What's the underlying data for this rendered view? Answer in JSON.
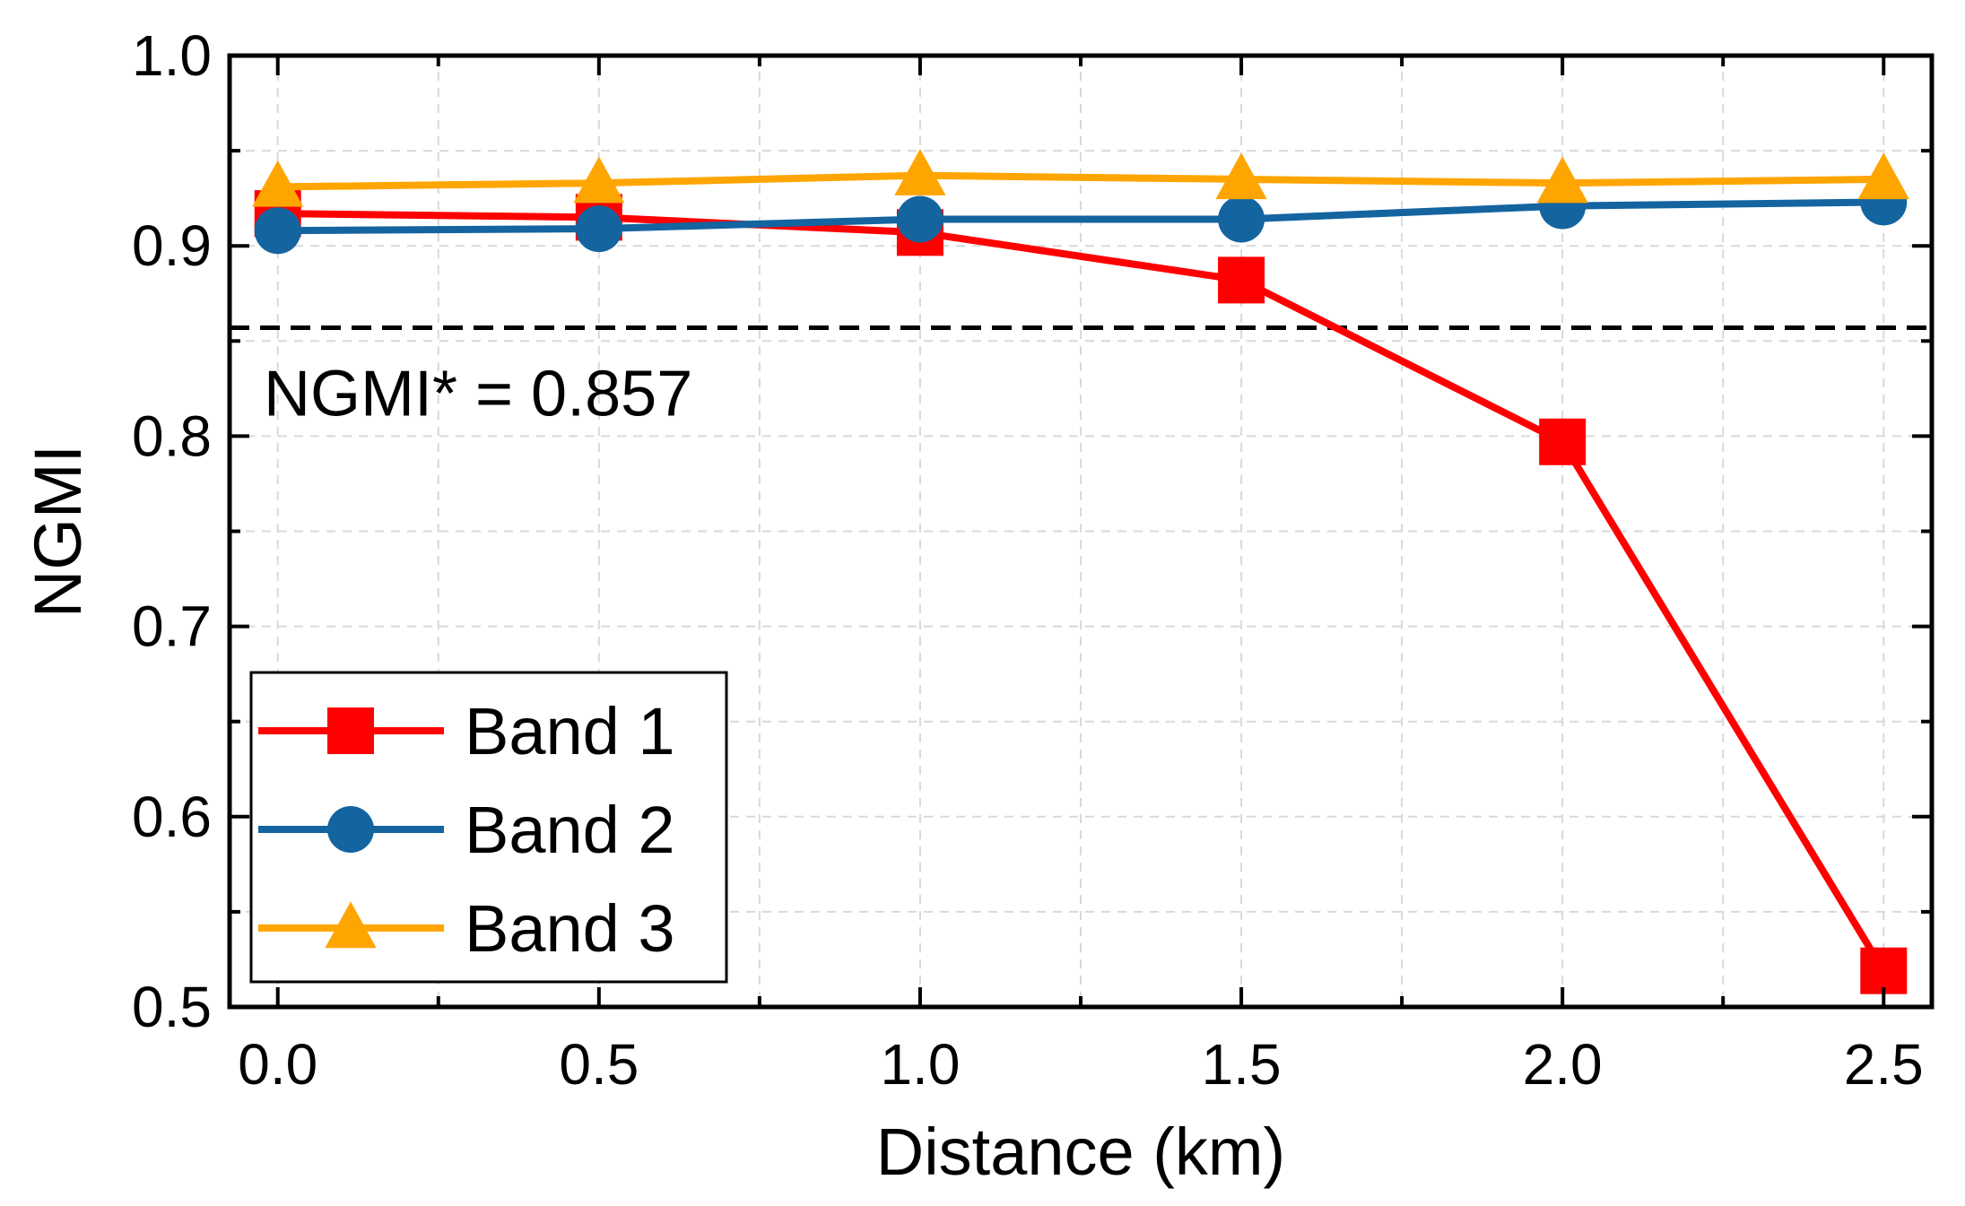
{
  "chart_data": {
    "type": "line",
    "title": "",
    "xlabel": "Distance (km)",
    "ylabel": "NGMI",
    "x": [
      0.0,
      0.5,
      1.0,
      1.5,
      2.0,
      2.5
    ],
    "xlim": [
      -0.075,
      2.575
    ],
    "ylim": [
      0.5,
      1.0
    ],
    "xticks": [
      0.0,
      0.5,
      1.0,
      1.5,
      2.0,
      2.5
    ],
    "xtick_labels": [
      "0.0",
      "0.5",
      "1.0",
      "1.5",
      "2.0",
      "2.5"
    ],
    "xminor": [
      0.25,
      0.75,
      1.25,
      1.75,
      2.25
    ],
    "yticks": [
      0.5,
      0.6,
      0.7,
      0.8,
      0.9,
      1.0
    ],
    "ytick_labels": [
      "0.5",
      "0.6",
      "0.7",
      "0.8",
      "0.9",
      "1.0"
    ],
    "yminor": [
      0.55,
      0.65,
      0.75,
      0.85,
      0.95
    ],
    "grid": true,
    "legend_position": "bottom-left",
    "threshold": {
      "value": 0.857,
      "label": "NGMI* = 0.857",
      "style": "dashed",
      "color": "#000000"
    },
    "series": [
      {
        "name": "Band 1",
        "marker": "square",
        "color": "#ff0000",
        "values": [
          0.917,
          0.915,
          0.907,
          0.882,
          0.797,
          0.519
        ]
      },
      {
        "name": "Band 2",
        "marker": "circle",
        "color": "#1464a0",
        "values": [
          0.908,
          0.909,
          0.914,
          0.914,
          0.921,
          0.923
        ]
      },
      {
        "name": "Band 3",
        "marker": "triangle",
        "color": "#ffa500",
        "values": [
          0.931,
          0.933,
          0.937,
          0.935,
          0.933,
          0.935
        ]
      }
    ]
  }
}
